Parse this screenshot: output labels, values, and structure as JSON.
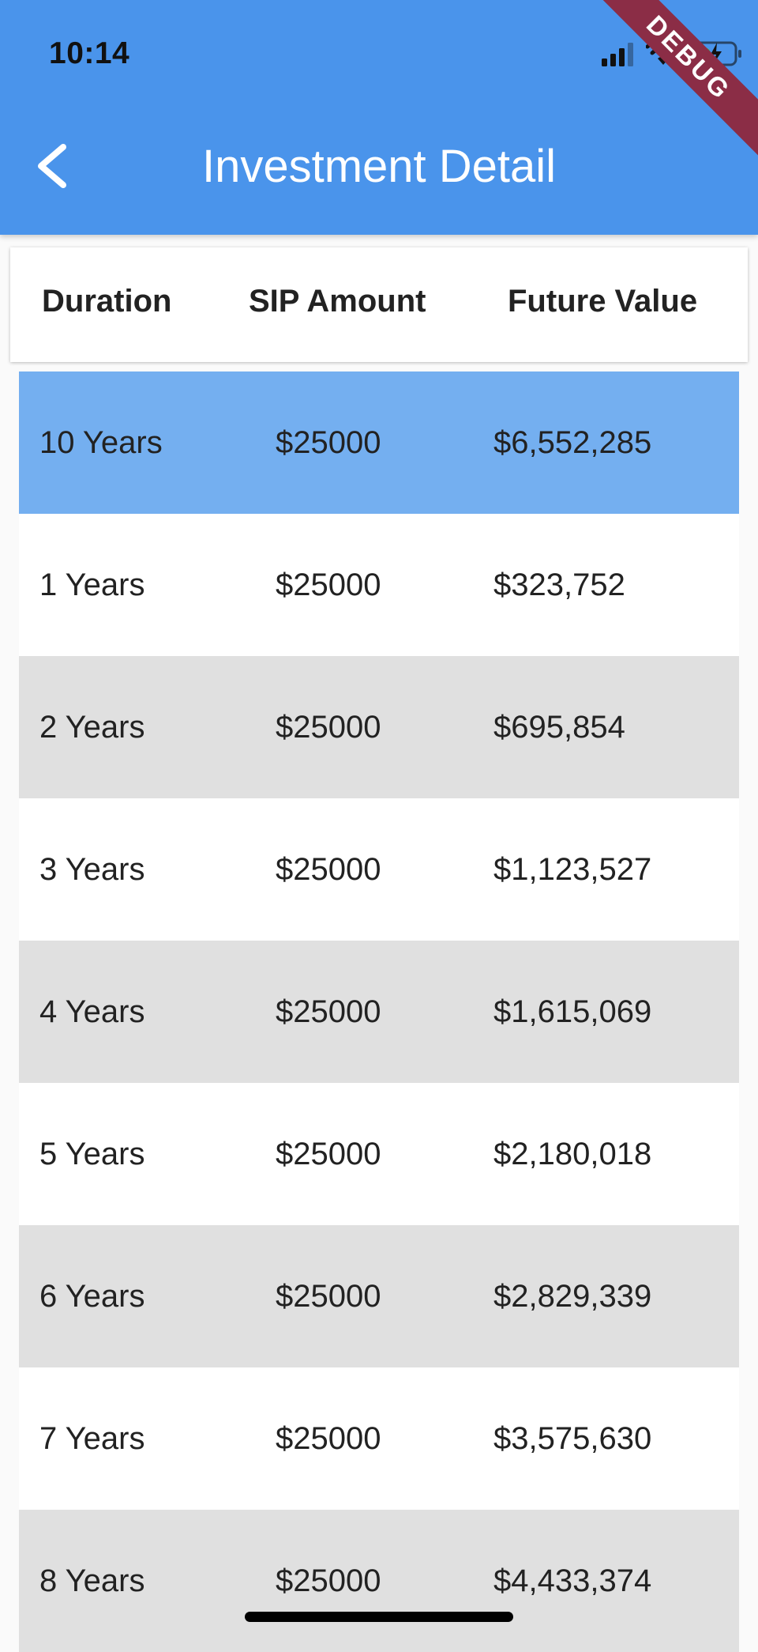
{
  "status_bar": {
    "time": "10:14"
  },
  "app_bar": {
    "title": "Investment Detail",
    "back_icon": "chevron-left-icon",
    "color": "#4a94eb"
  },
  "debug_banner": "DEBUG",
  "table": {
    "headers": {
      "duration": "Duration",
      "sip": "SIP Amount",
      "future": "Future Value"
    },
    "rows": [
      {
        "duration": "10 Years",
        "sip": "$25000",
        "future": "$6,552,285",
        "selected": true
      },
      {
        "duration": "1 Years",
        "sip": "$25000",
        "future": "$323,752"
      },
      {
        "duration": "2 Years",
        "sip": "$25000",
        "future": "$695,854"
      },
      {
        "duration": "3 Years",
        "sip": "$25000",
        "future": "$1,123,527"
      },
      {
        "duration": "4 Years",
        "sip": "$25000",
        "future": "$1,615,069"
      },
      {
        "duration": "5 Years",
        "sip": "$25000",
        "future": "$2,180,018"
      },
      {
        "duration": "6 Years",
        "sip": "$25000",
        "future": "$2,829,339"
      },
      {
        "duration": "7 Years",
        "sip": "$25000",
        "future": "$3,575,630"
      },
      {
        "duration": "8 Years",
        "sip": "$25000",
        "future": "$4,433,374"
      }
    ]
  },
  "colors": {
    "selected_row": "#74aff0",
    "stripe": "#e0e0e0"
  }
}
